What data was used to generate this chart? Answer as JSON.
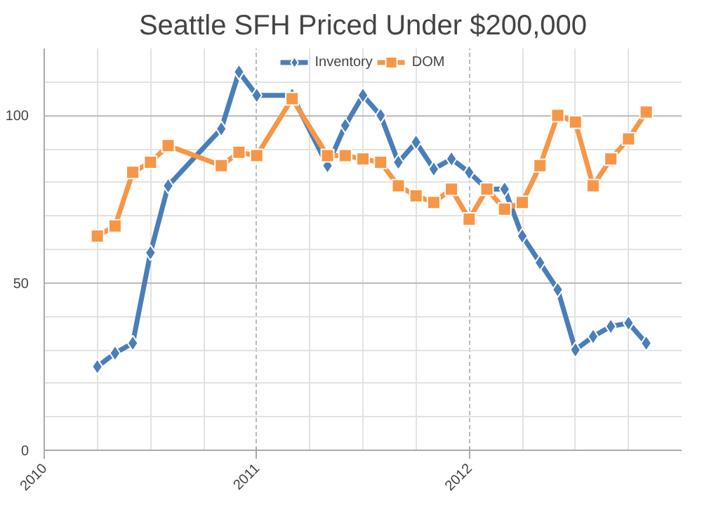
{
  "chart_data": {
    "type": "line",
    "title": "Seattle SFH Priced Under $200,000",
    "x": [
      "2010-04",
      "2010-05",
      "2010-06",
      "2010-07",
      "2010-08",
      "2010-11",
      "2010-12",
      "2011-01",
      "2011-03",
      "2011-05",
      "2011-06",
      "2011-07",
      "2011-08",
      "2011-09",
      "2011-10",
      "2011-11",
      "2011-12",
      "2012-01",
      "2012-02",
      "2012-03",
      "2012-04",
      "2012-05",
      "2012-06",
      "2012-07",
      "2012-08",
      "2012-09",
      "2012-10",
      "2012-11"
    ],
    "series": [
      {
        "name": "Inventory",
        "color": "#4a7ebb",
        "marker": "diamond",
        "values": [
          25,
          29,
          32,
          59,
          79,
          96,
          113,
          106,
          106,
          85,
          97,
          106,
          100,
          86,
          92,
          84,
          87,
          83,
          78,
          78,
          64,
          56,
          48,
          30,
          34,
          37,
          38,
          32
        ]
      },
      {
        "name": "DOM",
        "color": "#f79646",
        "marker": "square",
        "values": [
          64,
          67,
          83,
          86,
          91,
          85,
          89,
          88,
          105,
          88,
          88,
          87,
          86,
          79,
          76,
          74,
          78,
          69,
          78,
          72,
          74,
          85,
          100,
          98,
          79,
          87,
          93,
          101
        ]
      }
    ],
    "xlim": [
      "2010-01",
      "2013-01"
    ],
    "xticks": [
      {
        "value": "2010-01",
        "label": "2010"
      },
      {
        "value": "2010-04",
        "label": null
      },
      {
        "value": "2010-07",
        "label": null
      },
      {
        "value": "2010-10",
        "label": null
      },
      {
        "value": "2011-01",
        "label": "2011"
      },
      {
        "value": "2011-04",
        "label": null
      },
      {
        "value": "2011-07",
        "label": null
      },
      {
        "value": "2011-10",
        "label": null
      },
      {
        "value": "2012-01",
        "label": "2012"
      },
      {
        "value": "2012-04",
        "label": null
      },
      {
        "value": "2012-07",
        "label": null
      },
      {
        "value": "2012-10",
        "label": null
      }
    ],
    "ylim": [
      0,
      120
    ],
    "yticks": [
      0,
      {
        "value": 10,
        "label": null
      },
      {
        "value": 20,
        "label": null
      },
      {
        "value": 30,
        "label": null
      },
      {
        "value": 40,
        "label": null
      },
      50,
      {
        "value": 60,
        "label": null
      },
      {
        "value": 70,
        "label": null
      },
      {
        "value": 80,
        "label": null
      },
      {
        "value": 90,
        "label": null
      },
      100,
      {
        "value": 110,
        "label": null
      }
    ],
    "grid": true,
    "legend": "top"
  }
}
